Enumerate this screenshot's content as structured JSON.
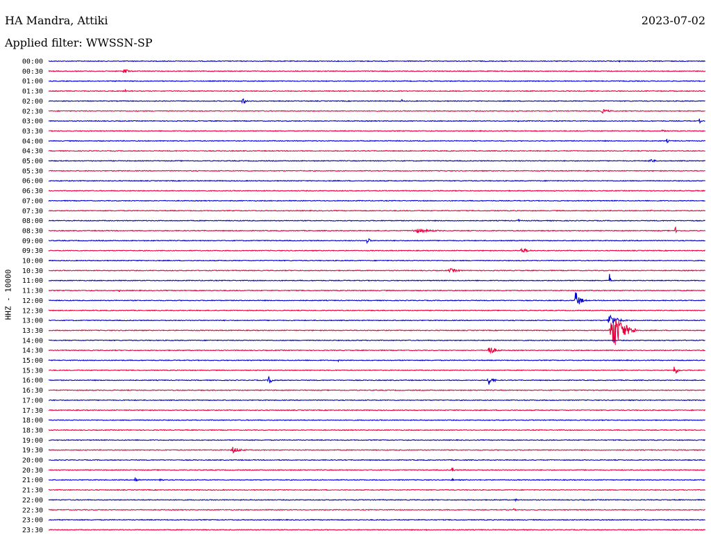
{
  "header": {
    "station": "HA Mandra, Attiki",
    "filter": "Applied filter: WWSSN-SP",
    "date": "2023-07-02"
  },
  "chart_data": {
    "type": "line",
    "ylabel": "HHZ - 10000",
    "colors": [
      "#0000cc",
      "#e8003c"
    ],
    "x_range_minutes": [
      0,
      30
    ],
    "rows": [
      {
        "label": "00:00",
        "events": [
          {
            "t": 26.0,
            "a": 3,
            "d": 0.2
          }
        ]
      },
      {
        "label": "00:30",
        "events": [
          {
            "t": 3.4,
            "a": 7,
            "d": 0.4
          }
        ]
      },
      {
        "label": "01:00",
        "events": []
      },
      {
        "label": "01:30",
        "events": [
          {
            "t": 3.5,
            "a": 3,
            "d": 0.1
          }
        ]
      },
      {
        "label": "02:00",
        "events": [
          {
            "t": 8.8,
            "a": 5,
            "d": 0.6
          },
          {
            "t": 16.1,
            "a": 3,
            "d": 0.2
          }
        ]
      },
      {
        "label": "02:30",
        "events": [
          {
            "t": 25.2,
            "a": 3,
            "d": 0.9
          }
        ]
      },
      {
        "label": "03:00",
        "events": [
          {
            "t": 21.4,
            "a": 3,
            "d": 0.1
          },
          {
            "t": 29.7,
            "a": 4,
            "d": 0.2
          }
        ]
      },
      {
        "label": "03:30",
        "events": [
          {
            "t": 28.0,
            "a": 3,
            "d": 0.3
          }
        ]
      },
      {
        "label": "04:00",
        "events": [
          {
            "t": 28.2,
            "a": 3,
            "d": 0.3
          }
        ]
      },
      {
        "label": "04:30",
        "events": []
      },
      {
        "label": "05:00",
        "events": [
          {
            "t": 27.4,
            "a": 5,
            "d": 0.5
          }
        ]
      },
      {
        "label": "05:30",
        "events": []
      },
      {
        "label": "06:00",
        "events": []
      },
      {
        "label": "06:30",
        "events": [
          {
            "t": 23.1,
            "a": 2,
            "d": 0.1
          }
        ]
      },
      {
        "label": "07:00",
        "events": []
      },
      {
        "label": "07:30",
        "events": [
          {
            "t": 27.5,
            "a": 2,
            "d": 0.2
          }
        ]
      },
      {
        "label": "08:00",
        "events": [
          {
            "t": 21.4,
            "a": 3,
            "d": 0.3
          }
        ]
      },
      {
        "label": "08:30",
        "events": [
          {
            "t": 16.5,
            "a": 3,
            "d": 2.5
          },
          {
            "t": 28.6,
            "a": 8,
            "d": 0.2
          }
        ]
      },
      {
        "label": "09:00",
        "events": [
          {
            "t": 14.5,
            "a": 8,
            "d": 0.3
          }
        ]
      },
      {
        "label": "09:30",
        "events": [
          {
            "t": 21.5,
            "a": 4,
            "d": 1.0
          }
        ]
      },
      {
        "label": "10:00",
        "events": []
      },
      {
        "label": "10:30",
        "events": [
          {
            "t": 18.2,
            "a": 3,
            "d": 1.2
          }
        ]
      },
      {
        "label": "11:00",
        "events": [
          {
            "t": 25.6,
            "a": 18,
            "d": 0.1
          }
        ]
      },
      {
        "label": "11:30",
        "events": [
          {
            "t": 3.2,
            "a": 2,
            "d": 0.2
          }
        ]
      },
      {
        "label": "12:00",
        "events": [
          {
            "t": 24.0,
            "a": 14,
            "d": 0.6
          }
        ]
      },
      {
        "label": "12:30",
        "events": []
      },
      {
        "label": "13:00",
        "events": [
          {
            "t": 25.5,
            "a": 10,
            "d": 1.0
          }
        ]
      },
      {
        "label": "13:30",
        "events": [
          {
            "t": 25.6,
            "a": 30,
            "d": 1.4
          }
        ]
      },
      {
        "label": "14:00",
        "events": []
      },
      {
        "label": "14:30",
        "events": [
          {
            "t": 20.0,
            "a": 8,
            "d": 0.8
          }
        ]
      },
      {
        "label": "15:00",
        "events": [
          {
            "t": 13.2,
            "a": 2,
            "d": 0.2
          }
        ]
      },
      {
        "label": "15:30",
        "events": [
          {
            "t": 28.5,
            "a": 8,
            "d": 0.5
          }
        ]
      },
      {
        "label": "16:00",
        "events": [
          {
            "t": 10.0,
            "a": 6,
            "d": 0.5
          },
          {
            "t": 20.0,
            "a": 8,
            "d": 0.6
          }
        ]
      },
      {
        "label": "16:30",
        "events": []
      },
      {
        "label": "17:00",
        "events": []
      },
      {
        "label": "17:30",
        "events": []
      },
      {
        "label": "18:00",
        "events": []
      },
      {
        "label": "18:30",
        "events": []
      },
      {
        "label": "19:00",
        "events": []
      },
      {
        "label": "19:30",
        "events": [
          {
            "t": 8.3,
            "a": 5,
            "d": 1.0
          }
        ]
      },
      {
        "label": "20:00",
        "events": []
      },
      {
        "label": "20:30",
        "events": [
          {
            "t": 18.4,
            "a": 7,
            "d": 0.2
          }
        ]
      },
      {
        "label": "21:00",
        "events": [
          {
            "t": 3.9,
            "a": 5,
            "d": 0.4
          },
          {
            "t": 5.0,
            "a": 4,
            "d": 0.4
          },
          {
            "t": 18.4,
            "a": 3,
            "d": 0.2
          }
        ]
      },
      {
        "label": "21:30",
        "events": []
      },
      {
        "label": "22:00",
        "events": [
          {
            "t": 21.3,
            "a": 3,
            "d": 0.2
          }
        ]
      },
      {
        "label": "22:30",
        "events": [
          {
            "t": 21.2,
            "a": 2,
            "d": 0.3
          }
        ]
      },
      {
        "label": "23:00",
        "events": []
      },
      {
        "label": "23:30",
        "events": [
          {
            "t": 17.2,
            "a": 2,
            "d": 0.2
          }
        ]
      }
    ]
  }
}
